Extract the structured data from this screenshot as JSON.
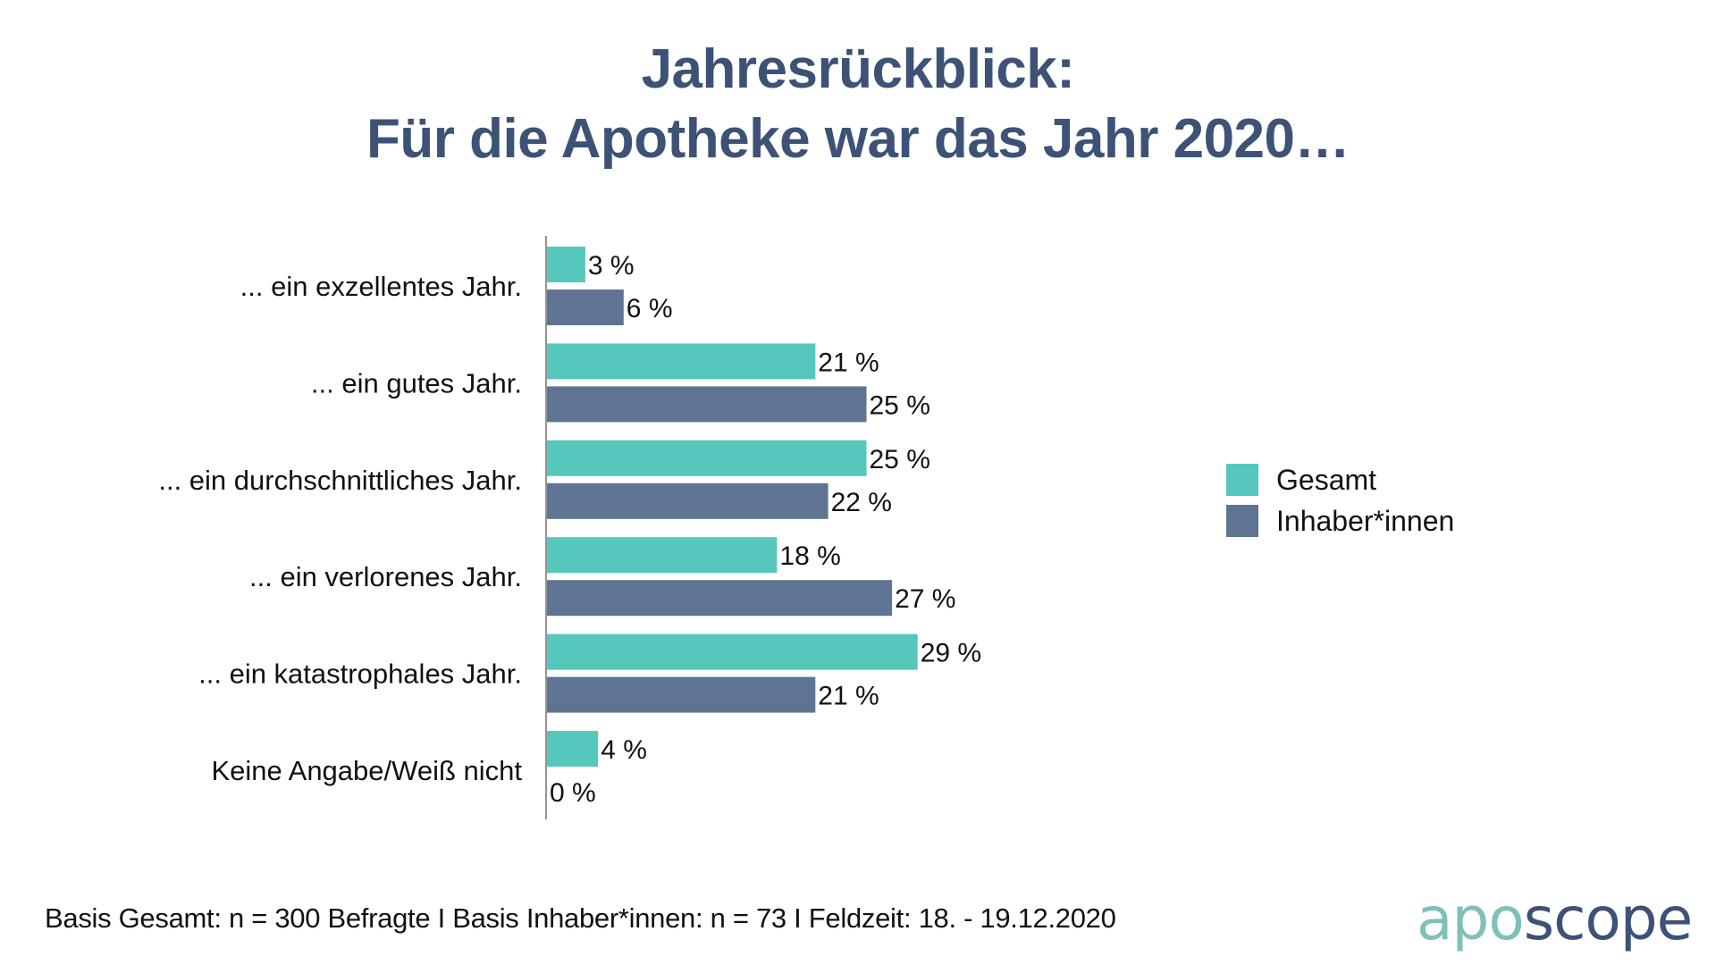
{
  "title": {
    "line1": "Jahresrückblick:",
    "line2": "Für die Apotheke war das Jahr 2020…"
  },
  "colors": {
    "title": "#3d5276",
    "gesamt": "#55c7bb",
    "inhaber": "#5f7492",
    "axis": "#707070",
    "logo_light": "#7fc1b7",
    "logo_dark": "#3d5276"
  },
  "legend": {
    "items": [
      {
        "label": "Gesamt"
      },
      {
        "label": "Inhaber*innen"
      }
    ]
  },
  "footnote": "Basis Gesamt: n = 300 Befragte I Basis Inhaber*innen: n = 73 I Feldzeit: 18. - 19.12.2020",
  "logo": {
    "part1": "apo",
    "part2": "scope"
  },
  "chart_data": {
    "type": "bar",
    "orientation": "horizontal",
    "title": "Jahresrückblick: Für die Apotheke war das Jahr 2020…",
    "xlabel": "",
    "ylabel": "",
    "unit": "%",
    "xlim": [
      0,
      30
    ],
    "grid": false,
    "legend_position": "right",
    "categories": [
      "... ein exzellentes Jahr.",
      "... ein gutes Jahr.",
      "... ein durchschnittliches Jahr.",
      "... ein verlorenes Jahr.",
      "... ein katastrophales Jahr.",
      "Keine Angabe/Weiß nicht"
    ],
    "series": [
      {
        "name": "Gesamt",
        "values": [
          3,
          21,
          25,
          18,
          29,
          4
        ],
        "labels": [
          "3 %",
          "21 %",
          "25 %",
          "18 %",
          "29 %",
          "4 %"
        ]
      },
      {
        "name": "Inhaber*innen",
        "values": [
          6,
          25,
          22,
          27,
          21,
          0
        ],
        "labels": [
          "6 %",
          "25 %",
          "22 %",
          "27 %",
          "21 %",
          "0 %"
        ]
      }
    ]
  }
}
